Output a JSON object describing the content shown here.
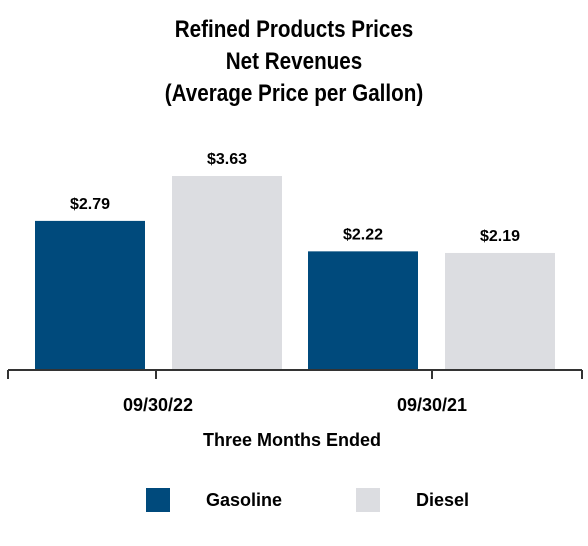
{
  "title_lines": [
    "Refined Products Prices",
    "Net Revenues",
    "(Average Price per Gallon)"
  ],
  "chart_data": {
    "type": "bar",
    "title": "Refined Products Prices Net Revenues (Average Price per Gallon)",
    "categories": [
      "09/30/22",
      "09/30/21"
    ],
    "xlabel": "Three Months Ended",
    "ylabel": "",
    "ylim": [
      0,
      4.2
    ],
    "grid": false,
    "legend_position": "bottom",
    "series": [
      {
        "name": "Gasoline",
        "color": "#004a7c",
        "values": [
          2.79,
          2.22
        ],
        "labels": [
          "$2.79",
          "$2.22"
        ]
      },
      {
        "name": "Diesel",
        "color": "#dcdde1",
        "values": [
          3.63,
          2.19
        ],
        "labels": [
          "$3.63",
          "$2.19"
        ]
      }
    ]
  }
}
